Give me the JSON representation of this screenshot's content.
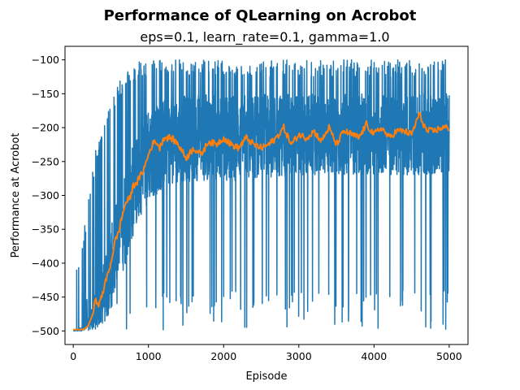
{
  "chart_data": {
    "type": "line",
    "title": "Performance of QLearning on Acrobot",
    "subtitle": "eps=0.1, learn_rate=0.1, gamma=1.0",
    "xlabel": "Episode",
    "ylabel": "Performance at Acrobot",
    "xlim": [
      -110,
      5250
    ],
    "ylim": [
      -520,
      -80
    ],
    "xticks": [
      0,
      1000,
      2000,
      3000,
      4000,
      5000
    ],
    "xtick_labels": [
      "0",
      "1000",
      "2000",
      "3000",
      "4000",
      "5000"
    ],
    "yticks": [
      -500,
      -450,
      -400,
      -350,
      -300,
      -250,
      -200,
      -150,
      -100
    ],
    "ytick_labels": [
      "−500",
      "−450",
      "−400",
      "−350",
      "−300",
      "−250",
      "−200",
      "−150",
      "−100"
    ],
    "grid": false,
    "colors": {
      "raw": "#1f77b4",
      "smoothed": "#ff7f0e"
    },
    "series": [
      {
        "role": "per-episode return",
        "x_start": 0,
        "x_end": 5000,
        "envelope_x": [
          0,
          100,
          200,
          300,
          400,
          500,
          600,
          700,
          800,
          900,
          1000,
          1200,
          1400,
          1600,
          1800,
          2000,
          2500,
          3000,
          3500,
          4000,
          4500,
          5000
        ],
        "envelope_upper": [
          -400,
          -390,
          -300,
          -230,
          -200,
          -160,
          -130,
          -120,
          -110,
          -100,
          -100,
          -100,
          -100,
          -100,
          -100,
          -100,
          -100,
          -100,
          -100,
          -100,
          -100,
          -100
        ],
        "envelope_lower": [
          -500,
          -500,
          -500,
          -500,
          -500,
          -500,
          -500,
          -500,
          -500,
          -500,
          -500,
          -500,
          -500,
          -500,
          -500,
          -500,
          -500,
          -500,
          -500,
          -500,
          -500,
          -500
        ],
        "typical_range_lower": [
          -500,
          -500,
          -500,
          -500,
          -490,
          -470,
          -440,
          -400,
          -360,
          -330,
          -310,
          -290,
          -280,
          -280,
          -280,
          -280,
          -275,
          -270,
          -270,
          -270,
          -270,
          -270
        ],
        "typical_range_upper": [
          -500,
          -495,
          -480,
          -440,
          -400,
          -350,
          -290,
          -250,
          -220,
          -200,
          -170,
          -160,
          -155,
          -150,
          -150,
          -150,
          -150,
          -150,
          -150,
          -150,
          -150,
          -150
        ]
      },
      {
        "role": "moving average",
        "x": [
          0,
          100,
          150,
          200,
          250,
          300,
          350,
          400,
          450,
          500,
          550,
          600,
          650,
          700,
          750,
          800,
          850,
          900,
          950,
          1000,
          1050,
          1100,
          1150,
          1200,
          1300,
          1400,
          1500,
          1600,
          1700,
          1800,
          1900,
          2000,
          2100,
          2200,
          2300,
          2400,
          2500,
          2600,
          2700,
          2800,
          2900,
          3000,
          3100,
          3200,
          3300,
          3400,
          3500,
          3600,
          3700,
          3800,
          3900,
          4000,
          4100,
          4200,
          4300,
          4400,
          4500,
          4600,
          4700,
          4800,
          4900,
          5000
        ],
        "y": [
          -498,
          -498,
          -497,
          -492,
          -478,
          -455,
          -460,
          -440,
          -420,
          -400,
          -370,
          -355,
          -330,
          -310,
          -305,
          -285,
          -280,
          -270,
          -258,
          -240,
          -225,
          -220,
          -230,
          -215,
          -215,
          -225,
          -245,
          -230,
          -240,
          -220,
          -225,
          -215,
          -225,
          -230,
          -215,
          -225,
          -230,
          -225,
          -215,
          -200,
          -225,
          -210,
          -215,
          -205,
          -220,
          -200,
          -225,
          -205,
          -210,
          -215,
          -195,
          -210,
          -200,
          -215,
          -205,
          -205,
          -210,
          -180,
          -205,
          -205,
          -200,
          -200
        ]
      }
    ]
  }
}
